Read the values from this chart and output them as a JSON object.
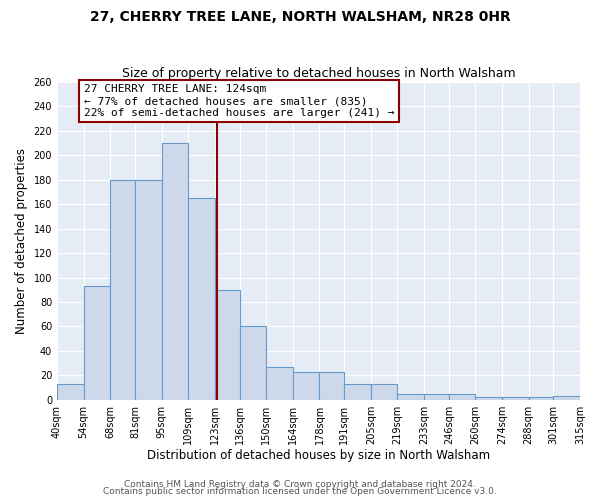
{
  "title": "27, CHERRY TREE LANE, NORTH WALSHAM, NR28 0HR",
  "subtitle": "Size of property relative to detached houses in North Walsham",
  "xlabel": "Distribution of detached houses by size in North Walsham",
  "ylabel": "Number of detached properties",
  "bar_edges": [
    40,
    54,
    68,
    81,
    95,
    109,
    123,
    136,
    150,
    164,
    178,
    191,
    205,
    219,
    233,
    246,
    260,
    274,
    288,
    301,
    315
  ],
  "bar_heights": [
    13,
    93,
    180,
    180,
    210,
    165,
    90,
    60,
    27,
    23,
    23,
    13,
    13,
    5,
    5,
    5,
    2,
    2,
    2,
    3
  ],
  "bar_color": "#cdd9ea",
  "bar_edge_color": "#6699cc",
  "property_line_x": 124,
  "property_line_color": "#8b0000",
  "annotation_title": "27 CHERRY TREE LANE: 124sqm",
  "annotation_line1": "← 77% of detached houses are smaller (835)",
  "annotation_line2": "22% of semi-detached houses are larger (241) →",
  "annotation_box_facecolor": "#ffffff",
  "annotation_box_edgecolor": "#8b0000",
  "ylim": [
    0,
    260
  ],
  "yticks": [
    0,
    20,
    40,
    60,
    80,
    100,
    120,
    140,
    160,
    180,
    200,
    220,
    240,
    260
  ],
  "x_tick_labels": [
    "40sqm",
    "54sqm",
    "68sqm",
    "81sqm",
    "95sqm",
    "109sqm",
    "123sqm",
    "136sqm",
    "150sqm",
    "164sqm",
    "178sqm",
    "191sqm",
    "205sqm",
    "219sqm",
    "233sqm",
    "246sqm",
    "260sqm",
    "274sqm",
    "288sqm",
    "301sqm",
    "315sqm"
  ],
  "footer1": "Contains HM Land Registry data © Crown copyright and database right 2024.",
  "footer2": "Contains public sector information licensed under the Open Government Licence v3.0.",
  "background_color": "#ffffff",
  "plot_background_color": "#e6ecf5",
  "grid_color": "#ffffff",
  "title_fontsize": 10,
  "subtitle_fontsize": 9,
  "axis_label_fontsize": 8.5,
  "tick_fontsize": 7,
  "annotation_fontsize": 8,
  "footer_fontsize": 6.5
}
